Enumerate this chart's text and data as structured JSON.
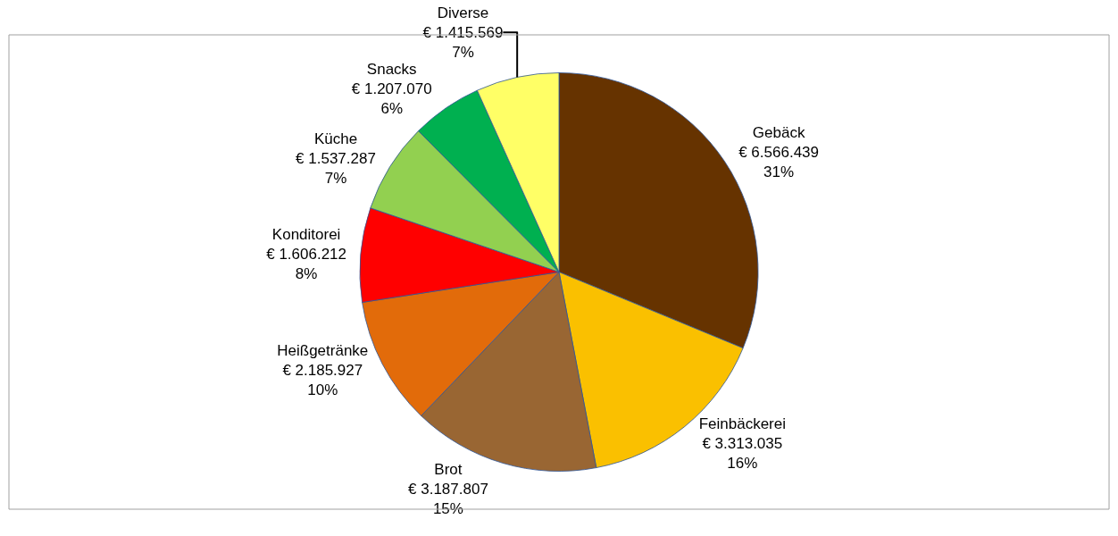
{
  "chart_data": {
    "type": "pie",
    "categories": [
      "Gebäck",
      "Feinbäckerei",
      "Brot",
      "Heißgetränke",
      "Konditorei",
      "Küche",
      "Snacks",
      "Diverse"
    ],
    "values": [
      6566439,
      3313035,
      3187807,
      2185927,
      1606212,
      1537287,
      1207070,
      1415569
    ],
    "value_labels": [
      "€ 6.566.439\n31%",
      "€ 3.313.035\n16%",
      "€ 3.187.807\n15%",
      "€ 2.185.927\n10%",
      "€ 1.606.212\n8%",
      "€ 1.537.287\n7%",
      "€ 1.207.070\n6%",
      "€ 1.415.569\n7%"
    ],
    "colors": [
      "#663300",
      "#fac000",
      "#996633",
      "#e26b0a",
      "#ff0000",
      "#92d050",
      "#00b050",
      "#ffff66"
    ],
    "legend": false
  }
}
